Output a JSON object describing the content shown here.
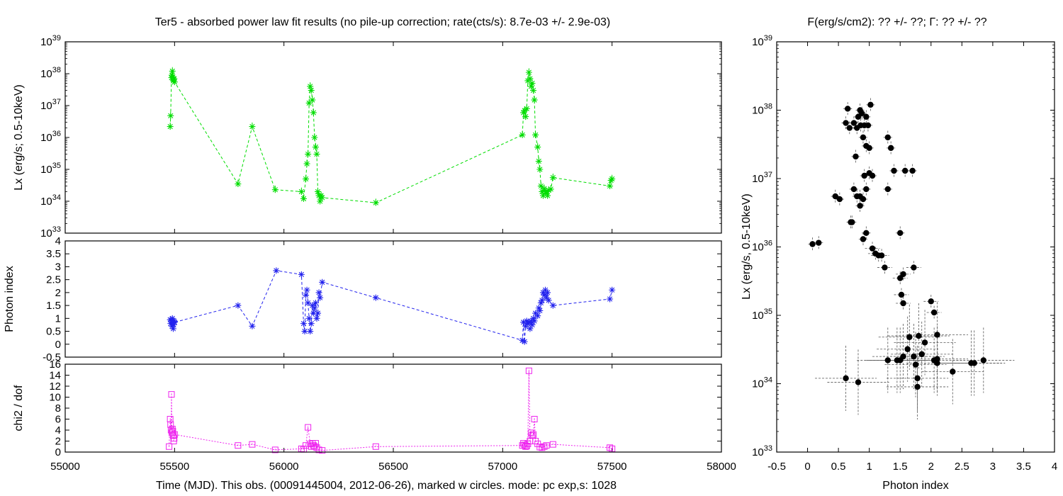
{
  "figure": {
    "left_title": "Ter5  - absorbed power law fit results (no pile-up correction; rate(cts/s): 8.7e-03 +/- 2.9e-03)",
    "right_title": "F(erg/s/cm2): ?? +/- ??; Γ: ?? +/- ??",
    "bottom_xlabel": "Time (MJD). This obs. (00091445004, 2012-06-26), marked w circles. mode: pc exp,s: 1028"
  },
  "colors": {
    "lx_series": "#00dd00",
    "photon_series": "#2222ee",
    "chi2_series": "#ee22ee",
    "scatter_points": "#000000",
    "scatter_errorbars": "#555555"
  },
  "chart_data": [
    {
      "id": "lx_time",
      "type": "line",
      "ylabel": "Lx (erg/s; 0.5-10keV)",
      "xlim": [
        55000,
        58000
      ],
      "ylim": [
        1e+33,
        1e+39
      ],
      "yscale": "log",
      "yticks": [
        "10^33",
        "10^34",
        "10^35",
        "10^36",
        "10^37",
        "10^38",
        "10^39"
      ],
      "series": [
        {
          "x": [
            55480,
            55482,
            55486,
            55488,
            55490,
            55492,
            55494,
            55496,
            55498,
            55500,
            55790,
            55855,
            55960,
            56080,
            56090,
            56100,
            56105,
            56110,
            56115,
            56120,
            56125,
            56130,
            56135,
            56140,
            56145,
            56150,
            56155,
            56160,
            56165,
            56170,
            56175,
            56420,
            57090,
            57095,
            57100,
            57105,
            57110,
            57115,
            57120,
            57125,
            57130,
            57135,
            57140,
            57145,
            57150,
            57160,
            57165,
            57170,
            57175,
            57180,
            57185,
            57190,
            57195,
            57200,
            57205,
            57210,
            57220,
            57230,
            57490,
            57495,
            57500
          ],
          "y": [
            2.2e+36,
            4.8e+36,
            7.5e+37,
            9e+37,
            1.2e+38,
            8e+37,
            6e+37,
            6.5e+37,
            7e+37,
            5.5e+37,
            3.5e+34,
            2.2e+36,
            2.3e+34,
            2e+34,
            1.2e+34,
            5e+34,
            1.5e+35,
            3e+35,
            1.2e+37,
            4e+37,
            3e+37,
            1.5e+37,
            6e+36,
            1e+36,
            5e+35,
            3e+35,
            2e+34,
            1.5e+34,
            1e+34,
            1.5e+34,
            1.3e+34,
            9e+33,
            1.2e+36,
            6e+36,
            7e+36,
            4.5e+36,
            8e+36,
            6e+37,
            1.1e+38,
            7e+37,
            4e+37,
            5e+37,
            3e+37,
            1.5e+37,
            1.2e+36,
            5e+35,
            1.8e+35,
            1e+35,
            3e+34,
            2e+34,
            1.5e+34,
            2.5e+34,
            1.8e+34,
            2e+34,
            1.5e+34,
            2.2e+34,
            2.4e+34,
            5.5e+34,
            3e+34,
            4.5e+34,
            5e+34
          ]
        }
      ]
    },
    {
      "id": "photon_time",
      "type": "line",
      "ylabel": "Photon index",
      "xlim": [
        55000,
        58000
      ],
      "ylim": [
        -0.5,
        4
      ],
      "yticks": [
        "-0.5",
        "0",
        "0.5",
        "1",
        "1.5",
        "2",
        "2.5",
        "3",
        "3.5",
        "4"
      ],
      "series": [
        {
          "x": [
            55480,
            55482,
            55485,
            55488,
            55490,
            55492,
            55494,
            55496,
            55498,
            55500,
            55790,
            55855,
            55965,
            56080,
            56090,
            56095,
            56100,
            56105,
            56110,
            56115,
            56120,
            56125,
            56130,
            56135,
            56140,
            56145,
            56150,
            56155,
            56160,
            56165,
            56175,
            56420,
            57090,
            57095,
            57100,
            57105,
            57110,
            57115,
            57120,
            57125,
            57130,
            57135,
            57140,
            57145,
            57150,
            57160,
            57165,
            57170,
            57175,
            57180,
            57185,
            57190,
            57195,
            57200,
            57205,
            57210,
            57230,
            57490,
            57500
          ],
          "y": [
            0.95,
            0.8,
            0.9,
            0.7,
            1.0,
            0.85,
            0.6,
            0.75,
            0.9,
            0.85,
            1.5,
            0.7,
            2.85,
            2.7,
            0.8,
            0.5,
            1.9,
            2.1,
            1.6,
            1.0,
            0.5,
            0.8,
            1.5,
            1.2,
            1.4,
            1.6,
            1.0,
            1.2,
            2.0,
            1.8,
            2.4,
            1.8,
            0.15,
            0.85,
            0.1,
            0.7,
            0.9,
            0.8,
            0.85,
            0.6,
            0.9,
            0.75,
            1.0,
            0.9,
            1.2,
            1.1,
            1.4,
            1.3,
            1.6,
            1.7,
            2.0,
            1.9,
            2.1,
            1.8,
            2.0,
            1.7,
            1.5,
            1.75,
            2.1
          ]
        }
      ]
    },
    {
      "id": "chi2_time",
      "type": "line",
      "ylabel": "chi2 / dof",
      "xlim": [
        55000,
        58000
      ],
      "ylim": [
        0,
        16
      ],
      "yticks": [
        "0",
        "2",
        "4",
        "6",
        "8",
        "10",
        "12",
        "14",
        "16"
      ],
      "xticks": [
        "55000",
        "55500",
        "56000",
        "56500",
        "57000",
        "57500",
        "58000"
      ],
      "series": [
        {
          "x": [
            55475,
            55480,
            55482,
            55484,
            55486,
            55488,
            55490,
            55492,
            55494,
            55496,
            55498,
            55500,
            55790,
            55855,
            55960,
            56080,
            56090,
            56100,
            56110,
            56120,
            56125,
            56130,
            56135,
            56140,
            56145,
            56150,
            56160,
            56175,
            56420,
            57090,
            57095,
            57100,
            57105,
            57110,
            57115,
            57120,
            57125,
            57130,
            57135,
            57140,
            57145,
            57150,
            57160,
            57170,
            57180,
            57190,
            57200,
            57230,
            57490,
            57500
          ],
          "y": [
            1.0,
            6.0,
            5.0,
            4.0,
            10.5,
            3.5,
            4.2,
            3.8,
            3.0,
            2.0,
            2.5,
            3.2,
            1.2,
            1.4,
            0.4,
            0.6,
            0.5,
            1.2,
            4.5,
            1.5,
            1.0,
            1.6,
            1.2,
            1.0,
            1.6,
            0.8,
            0.4,
            0.3,
            1.0,
            1.2,
            1.6,
            1.3,
            1.0,
            1.1,
            1.5,
            14.8,
            2.0,
            3.5,
            3.0,
            3.2,
            6.0,
            2.0,
            1.5,
            0.9,
            0.8,
            1.0,
            1.2,
            1.4,
            0.8,
            0.6
          ]
        }
      ]
    },
    {
      "id": "lx_vs_photon",
      "type": "scatter",
      "title": "F(erg/s/cm2): ?? +/- ??; Γ: ?? +/- ??",
      "xlabel": "Photon index",
      "ylabel": "Lx (erg/s, 0.5-10keV)",
      "xlim": [
        -0.5,
        4
      ],
      "ylim": [
        1e+33,
        1e+39
      ],
      "yscale": "log",
      "xticks": [
        "-0.5",
        "0",
        "0.5",
        "1",
        "1.5",
        "2",
        "2.5",
        "3",
        "3.5",
        "4"
      ],
      "yticks": [
        "10^33",
        "10^34",
        "10^35",
        "10^36",
        "10^37",
        "10^38",
        "10^39"
      ],
      "points": {
        "x": [
          0.08,
          0.18,
          0.45,
          0.52,
          0.62,
          0.68,
          0.7,
          0.72,
          0.75,
          0.78,
          0.8,
          0.82,
          0.85,
          0.86,
          0.88,
          0.9,
          0.92,
          0.95,
          0.98,
          1.0,
          1.02,
          1.05,
          0.9,
          0.95,
          0.65,
          0.75,
          0.85,
          0.8,
          0.9,
          0.92,
          1.3,
          1.35,
          1.4,
          1.05,
          1.1,
          1.15,
          1.2,
          1.25,
          1.3,
          1.5,
          1.55,
          1.52,
          1.55,
          1.5,
          1.58,
          1.72,
          2.0,
          2.05,
          2.1,
          1.65,
          1.8,
          1.9,
          2.1,
          1.72,
          1.85,
          1.5,
          1.55,
          1.62,
          1.45,
          2.05,
          1.75,
          2.1,
          2.35,
          2.65,
          2.85,
          1.78,
          1.78,
          0.62,
          0.82,
          2.7,
          1.3,
          0.95,
          1.7,
          0.85,
          1.0,
          0.95
        ],
        "y": [
          1.1e+36,
          1.15e+36,
          5.5e+36,
          5e+36,
          6.5e+37,
          5.5e+37,
          2.3e+36,
          2.3e+36,
          7e+36,
          2.1e+37,
          5.5e+37,
          8e+37,
          1e+38,
          6e+37,
          9e+37,
          4e+37,
          6e+37,
          8e+37,
          6e+37,
          2.8e+37,
          1.2e+38,
          1.1e+37,
          1.3e+36,
          1.6e+36,
          1.05e+38,
          6.5e+37,
          5.5e+36,
          5.5e+36,
          5e+36,
          1.1e+37,
          4e+37,
          2.8e+37,
          1.3e+37,
          9.5e+35,
          8e+35,
          7.5e+35,
          7.5e+35,
          5e+35,
          7e+36,
          3.5e+35,
          4e+35,
          2e+35,
          1.5e+35,
          1.6e+36,
          1.3e+37,
          5e+35,
          1.6e+35,
          1.1e+35,
          5.2e+34,
          4.8e+34,
          5e+34,
          4e+34,
          2.3e+34,
          2.5e+34,
          2.7e+34,
          2.2e+34,
          2.5e+34,
          3.2e+34,
          2.2e+34,
          2.2e+34,
          1.9e+34,
          2e+34,
          1.5e+34,
          2e+34,
          2.2e+34,
          1.2e+34,
          9e+33,
          1.2e+34,
          1.05e+34,
          2e+34,
          2.2e+34,
          7e+36,
          1.3e+37,
          4e+36,
          1.2e+37,
          3e+37
        ]
      }
    }
  ]
}
